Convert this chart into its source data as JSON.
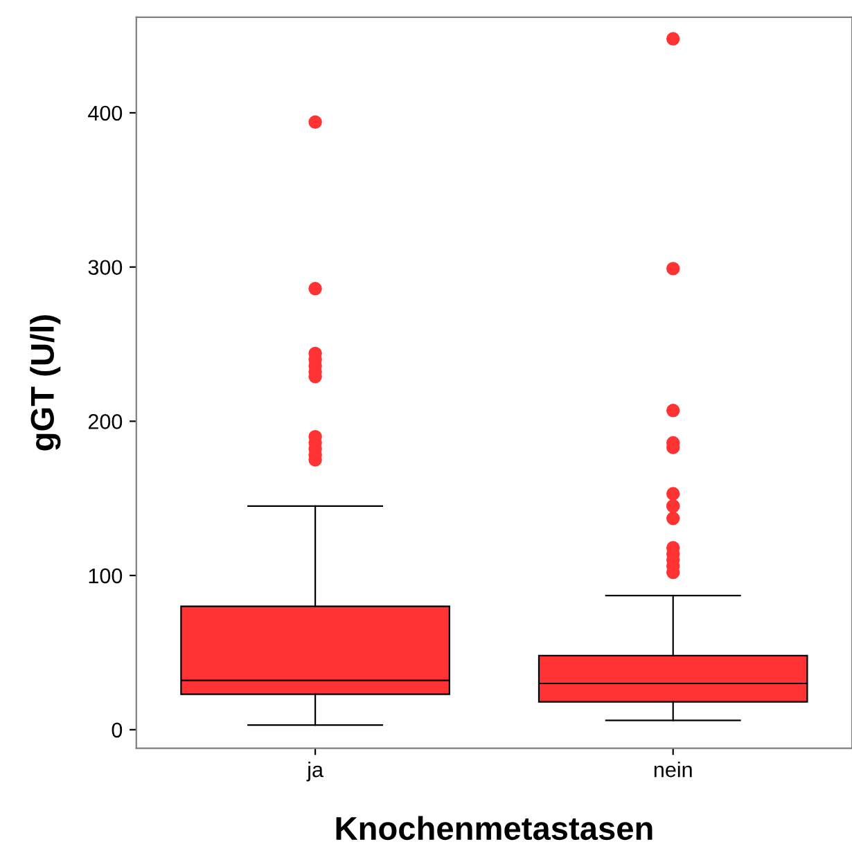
{
  "chart_data": {
    "type": "box",
    "xlabel": "Knochenmetastasen",
    "ylabel": "gGT (U/l)",
    "categories": [
      "ja",
      "nein"
    ],
    "color": "#ff3333",
    "boxes": [
      {
        "low": 3,
        "q1": 23,
        "median": 32,
        "q3": 80,
        "high": 145,
        "outliers": [
          394,
          286,
          244,
          240,
          236,
          232,
          229,
          190,
          186,
          182,
          178,
          175
        ]
      },
      {
        "low": 6,
        "q1": 18,
        "median": 30,
        "q3": 48,
        "high": 87,
        "outliers": [
          448,
          299,
          207,
          186,
          183,
          153,
          145,
          145,
          137,
          118,
          114,
          110,
          106,
          102
        ]
      }
    ],
    "ylim": [
      -12,
      462
    ],
    "yticks": [
      0,
      100,
      200,
      300,
      400
    ],
    "grid": false
  }
}
